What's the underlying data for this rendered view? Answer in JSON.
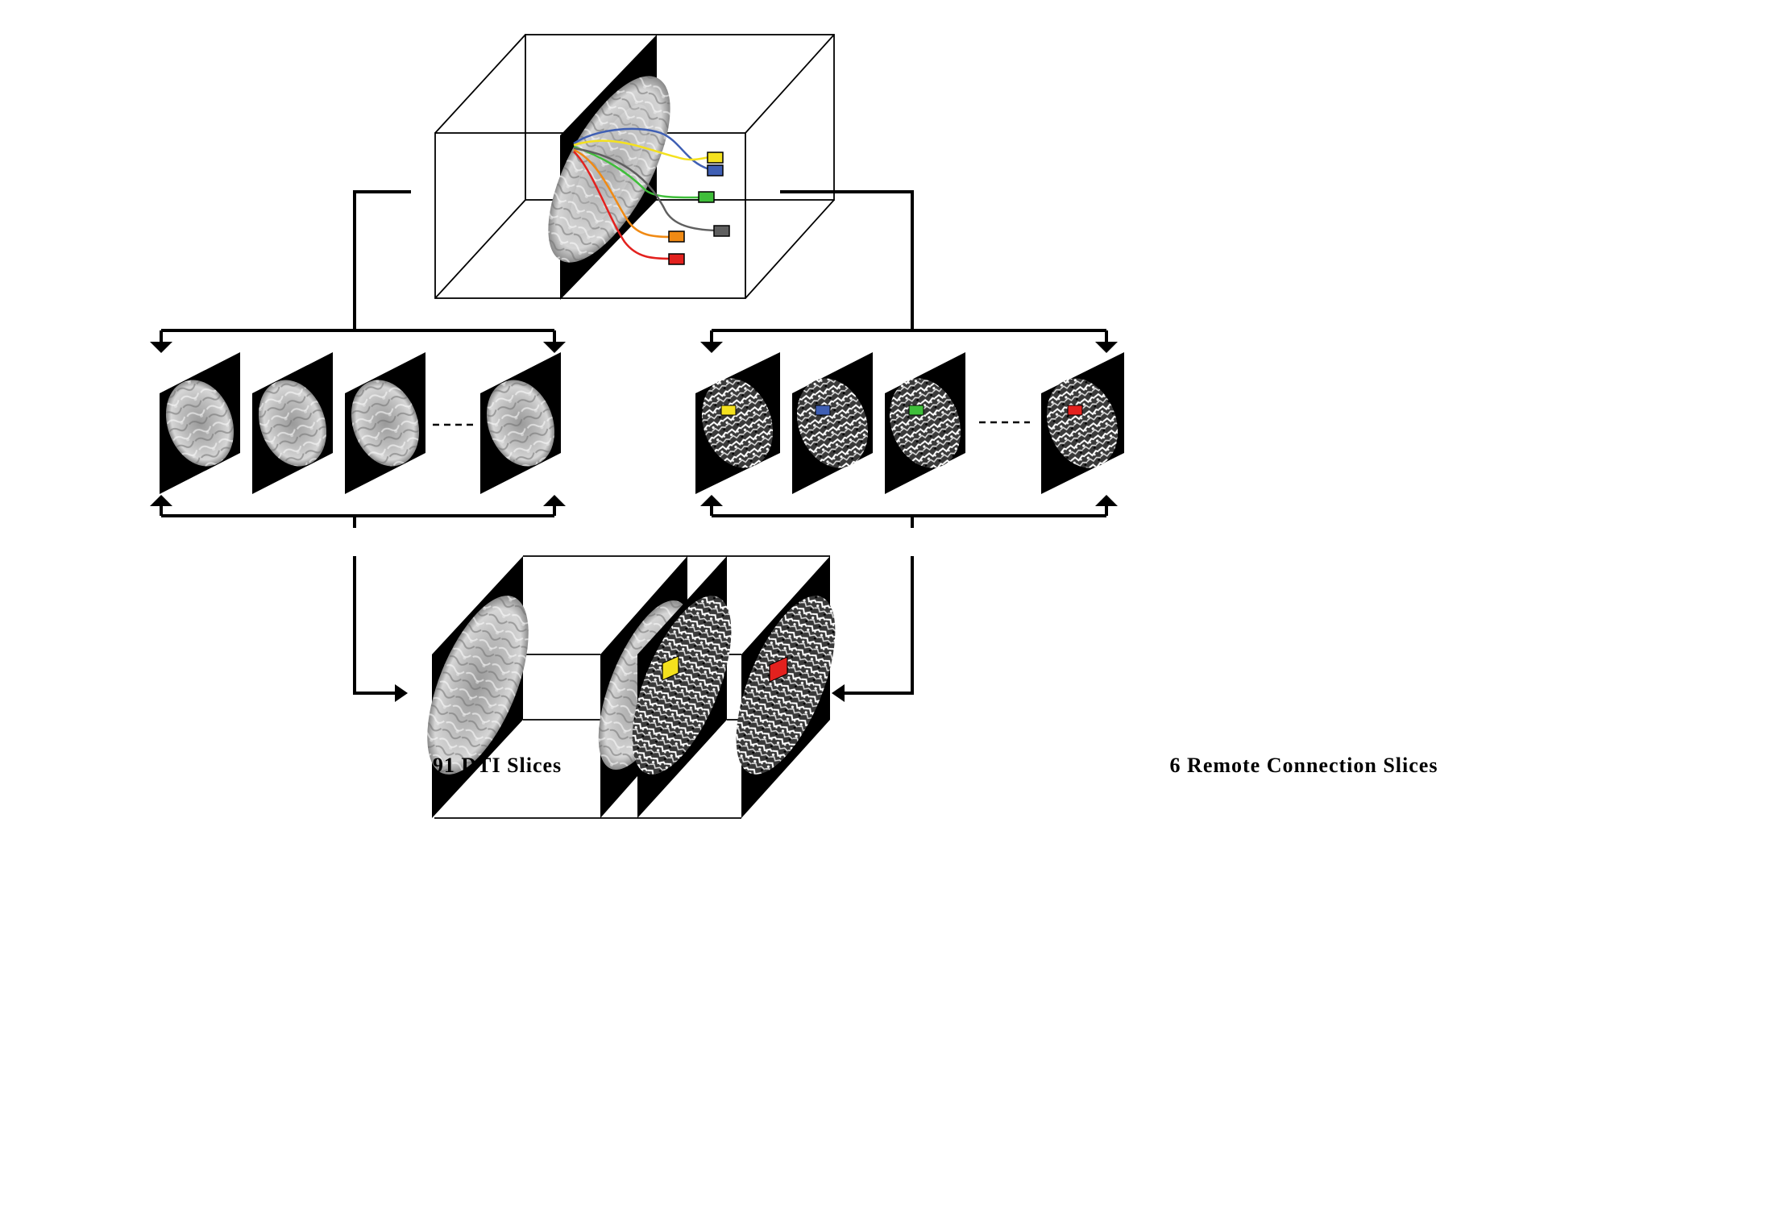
{
  "labels": {
    "dti": "91 DTI Slices",
    "remote": "6 Remote Connection Slices",
    "ellipsis": "- - - -"
  },
  "colors": {
    "yellow": "#f4e11e",
    "blue": "#3f5fb4",
    "green": "#3fbe3a",
    "gray": "#5f5f5f",
    "orange": "#f08a14",
    "red": "#e3211e"
  },
  "icons": [
    "brain-mri-slice",
    "arrow-down-icon",
    "arrow-up-icon",
    "arrow-right-icon",
    "arrow-left-icon"
  ]
}
